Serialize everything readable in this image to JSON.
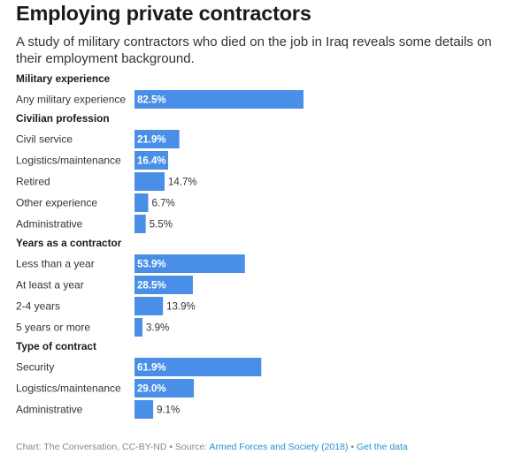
{
  "title": "Employing private contractors",
  "subtitle": "A study of military contractors who died on the job in Iraq reveals some details on their employment background.",
  "colors": {
    "bar": "#4a8fe7"
  },
  "chart_data": {
    "type": "bar",
    "orientation": "horizontal",
    "value_unit": "%",
    "xlim": [
      0,
      100
    ],
    "groups": [
      {
        "name": "Military experience",
        "categories": [
          "Any military experience"
        ],
        "values": [
          82.5
        ],
        "labels": [
          "82.5%"
        ]
      },
      {
        "name": "Civilian profession",
        "categories": [
          "Civil service",
          "Logistics/maintenance",
          "Retired",
          "Other experience",
          "Administrative"
        ],
        "values": [
          21.9,
          16.4,
          14.7,
          6.7,
          5.5
        ],
        "labels": [
          "21.9%",
          "16.4%",
          "14.7%",
          "6.7%",
          "5.5%"
        ]
      },
      {
        "name": "Years as a contractor",
        "categories": [
          "Less than a year",
          "At least a year",
          "2-4 years",
          "5 years or more"
        ],
        "values": [
          53.9,
          28.5,
          13.9,
          3.9
        ],
        "labels": [
          "53.9%",
          "28.5%",
          "13.9%",
          "3.9%"
        ]
      },
      {
        "name": "Type of contract",
        "categories": [
          "Security",
          "Logistics/maintenance",
          "Administrative"
        ],
        "values": [
          61.9,
          29.0,
          9.1
        ],
        "labels": [
          "61.9%",
          "29.0%",
          "9.1%"
        ]
      }
    ]
  },
  "footer": {
    "credit": "Chart: The Conversation, CC-BY-ND",
    "separator": " • ",
    "source_prefix": "Source: ",
    "source_link": "Armed Forces and Society (2018)",
    "get_data": "Get the data"
  }
}
